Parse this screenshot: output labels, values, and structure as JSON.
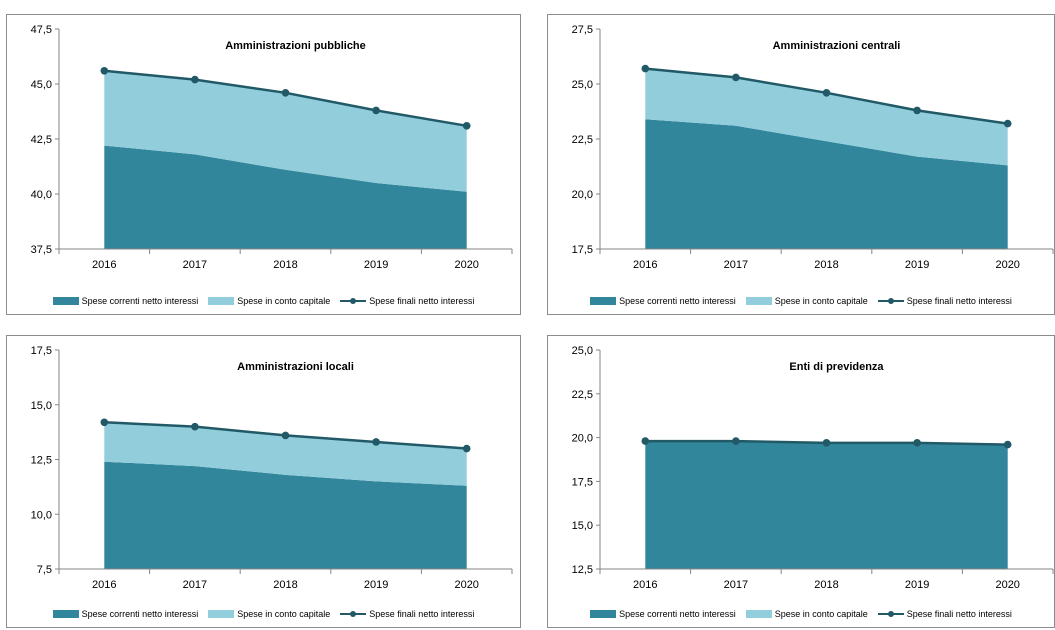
{
  "colors": {
    "current": "#31869b",
    "capital": "#92cddc",
    "line": "#215967",
    "axis": "#868686",
    "text": "#000000"
  },
  "legend": {
    "current": "Spese correnti netto interessi",
    "capital": "Spese in conto capitale",
    "total": "Spese finali netto interessi"
  },
  "chart_data": [
    {
      "type": "area",
      "title": "Amministrazioni pubbliche",
      "categories": [
        "2016",
        "2017",
        "2018",
        "2019",
        "2020"
      ],
      "ylim": [
        37.5,
        47.5
      ],
      "yticks": [
        "37,5",
        "40,0",
        "42,5",
        "45,0",
        "47,5"
      ],
      "series": [
        {
          "name": "Spese correnti netto interessi",
          "kind": "area",
          "values": [
            42.2,
            41.8,
            41.1,
            40.5,
            40.1
          ]
        },
        {
          "name": "Spese in conto capitale",
          "kind": "area",
          "values": [
            3.4,
            3.4,
            3.5,
            3.3,
            3.0
          ]
        },
        {
          "name": "Spese finali netto interessi",
          "kind": "line",
          "values": [
            45.6,
            45.2,
            44.6,
            43.8,
            43.1
          ]
        }
      ],
      "legend_position": "bottom"
    },
    {
      "type": "area",
      "title": "Amministrazioni centrali",
      "categories": [
        "2016",
        "2017",
        "2018",
        "2019",
        "2020"
      ],
      "ylim": [
        17.5,
        27.5
      ],
      "yticks": [
        "17,5",
        "20,0",
        "22,5",
        "25,0",
        "27,5"
      ],
      "series": [
        {
          "name": "Spese correnti netto interessi",
          "kind": "area",
          "values": [
            23.4,
            23.1,
            22.4,
            21.7,
            21.3
          ]
        },
        {
          "name": "Spese in conto capitale",
          "kind": "area",
          "values": [
            2.3,
            2.2,
            2.2,
            2.1,
            1.9
          ]
        },
        {
          "name": "Spese finali netto interessi",
          "kind": "line",
          "values": [
            25.7,
            25.3,
            24.6,
            23.8,
            23.2
          ]
        }
      ],
      "legend_position": "bottom"
    },
    {
      "type": "area",
      "title": "Amministrazioni locali",
      "categories": [
        "2016",
        "2017",
        "2018",
        "2019",
        "2020"
      ],
      "ylim": [
        7.5,
        17.5
      ],
      "yticks": [
        "7,5",
        "10,0",
        "12,5",
        "15,0",
        "17,5"
      ],
      "series": [
        {
          "name": "Spese correnti netto interessi",
          "kind": "area",
          "values": [
            12.4,
            12.2,
            11.8,
            11.5,
            11.3
          ]
        },
        {
          "name": "Spese in conto capitale",
          "kind": "area",
          "values": [
            1.8,
            1.8,
            1.8,
            1.8,
            1.7
          ]
        },
        {
          "name": "Spese finali netto interessi",
          "kind": "line",
          "values": [
            14.2,
            14.0,
            13.6,
            13.3,
            13.0
          ]
        }
      ],
      "legend_position": "bottom"
    },
    {
      "type": "area",
      "title": "Enti di previdenza",
      "categories": [
        "2016",
        "2017",
        "2018",
        "2019",
        "2020"
      ],
      "ylim": [
        12.5,
        25.0
      ],
      "yticks": [
        "12,5",
        "15,0",
        "17,5",
        "20,0",
        "22,5",
        "25,0"
      ],
      "series": [
        {
          "name": "Spese correnti netto interessi",
          "kind": "area",
          "values": [
            19.8,
            19.8,
            19.7,
            19.7,
            19.6
          ]
        },
        {
          "name": "Spese in conto capitale",
          "kind": "area",
          "values": [
            0.0,
            0.0,
            0.0,
            0.0,
            0.0
          ]
        },
        {
          "name": "Spese finali netto interessi",
          "kind": "line",
          "values": [
            19.8,
            19.8,
            19.7,
            19.7,
            19.6
          ]
        }
      ],
      "legend_position": "bottom"
    }
  ]
}
